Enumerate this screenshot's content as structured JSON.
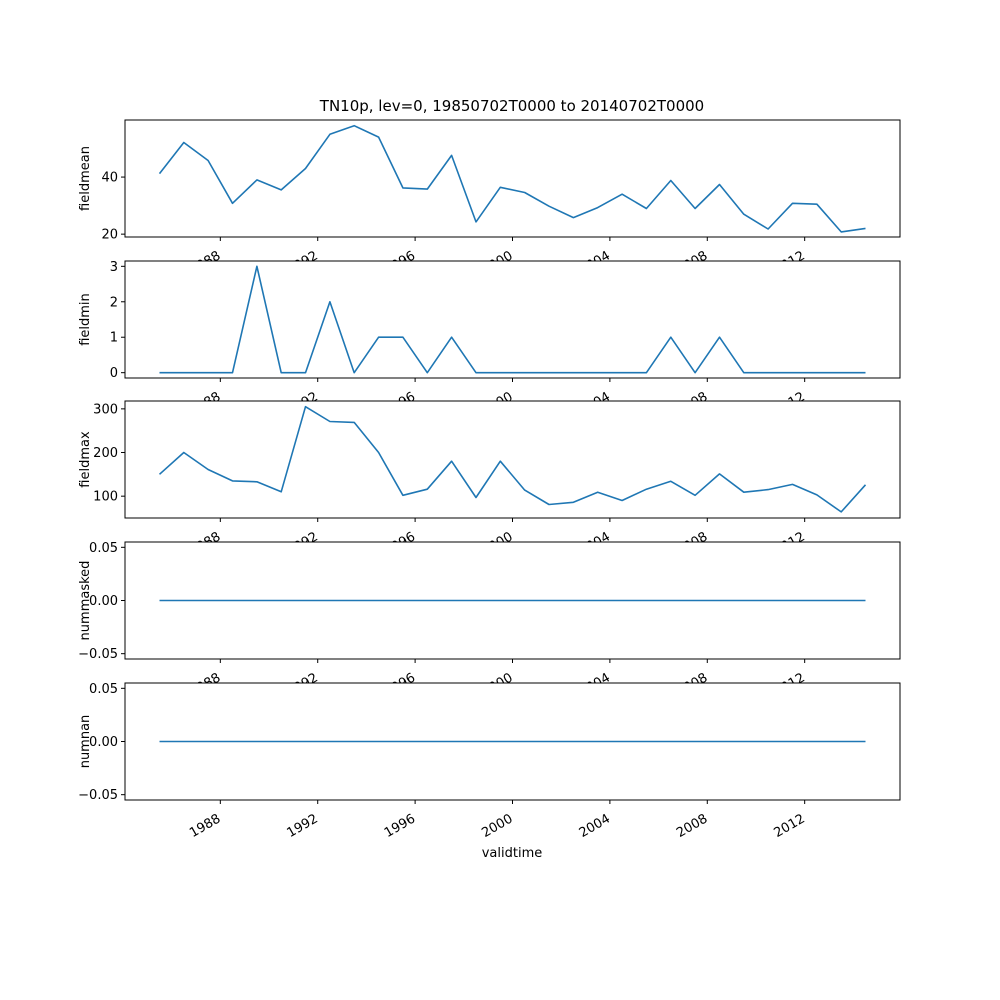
{
  "chart_data": {
    "type": "line",
    "title": "TN10p, lev=0, 19850702T0000 to 20140702T0000",
    "xlabel": "validtime",
    "x": [
      "1985-07-02",
      "1986-07-02",
      "1987-07-02",
      "1988-07-02",
      "1989-07-02",
      "1990-07-02",
      "1991-07-02",
      "1992-07-02",
      "1993-07-02",
      "1994-07-02",
      "1995-07-02",
      "1996-07-02",
      "1997-07-02",
      "1998-07-02",
      "1999-07-02",
      "2000-07-02",
      "2001-07-02",
      "2002-07-02",
      "2003-07-02",
      "2004-07-02",
      "2005-07-02",
      "2006-07-02",
      "2007-07-02",
      "2008-07-02",
      "2009-07-02",
      "2010-07-02",
      "2011-07-02",
      "2012-07-02",
      "2013-07-02",
      "2014-07-02"
    ],
    "x_ticks": [
      "1988",
      "1992",
      "1996",
      "2000",
      "2004",
      "2008",
      "2012"
    ],
    "x_tick_rotation": -30,
    "xlim": [
      "1984-02-01",
      "2015-12-01"
    ],
    "panels": [
      {
        "ylabel": "fieldmean",
        "ylim": [
          19,
          60
        ],
        "y_ticks": [
          "20",
          "40"
        ],
        "values": [
          41.2,
          52.1,
          45.8,
          30.8,
          39.0,
          35.5,
          43.0,
          55.0,
          58.0,
          54.0,
          36.2,
          35.8,
          47.6,
          24.3,
          36.4,
          34.6,
          29.8,
          25.8,
          29.3,
          34.0,
          29.0,
          38.8,
          29.0,
          37.4,
          27.0,
          21.8,
          30.8,
          30.5,
          20.8,
          22.0
        ]
      },
      {
        "ylabel": "fieldmin",
        "ylim": [
          -0.15,
          3.15
        ],
        "y_ticks": [
          "0",
          "1",
          "2",
          "3"
        ],
        "values": [
          0,
          0,
          0,
          0,
          3,
          0,
          0,
          2,
          0,
          1,
          1,
          0,
          1,
          0,
          0,
          0,
          0,
          0,
          0,
          0,
          0,
          1,
          0,
          1,
          0,
          0,
          0,
          0,
          0,
          0
        ]
      },
      {
        "ylabel": "fieldmax",
        "ylim": [
          50,
          318
        ],
        "y_ticks": [
          "100",
          "200",
          "300"
        ],
        "values": [
          150,
          200,
          161,
          135,
          133,
          110,
          305,
          271,
          269,
          200,
          102,
          116,
          180,
          97,
          180,
          114,
          81,
          86,
          109,
          90,
          116,
          134,
          102,
          151,
          109,
          115,
          127,
          103,
          64,
          126
        ]
      },
      {
        "ylabel": "nummasked",
        "ylim": [
          -0.055,
          0.055
        ],
        "y_ticks": [
          "0.05",
          "0.00",
          "−0.05"
        ],
        "values": [
          0,
          0,
          0,
          0,
          0,
          0,
          0,
          0,
          0,
          0,
          0,
          0,
          0,
          0,
          0,
          0,
          0,
          0,
          0,
          0,
          0,
          0,
          0,
          0,
          0,
          0,
          0,
          0,
          0,
          0
        ]
      },
      {
        "ylabel": "numnan",
        "ylim": [
          -0.055,
          0.055
        ],
        "y_ticks": [
          "0.05",
          "0.00",
          "−0.05"
        ],
        "values": [
          0,
          0,
          0,
          0,
          0,
          0,
          0,
          0,
          0,
          0,
          0,
          0,
          0,
          0,
          0,
          0,
          0,
          0,
          0,
          0,
          0,
          0,
          0,
          0,
          0,
          0,
          0,
          0,
          0,
          0
        ]
      }
    ],
    "line_color": "#1f77b4",
    "grid": false
  }
}
